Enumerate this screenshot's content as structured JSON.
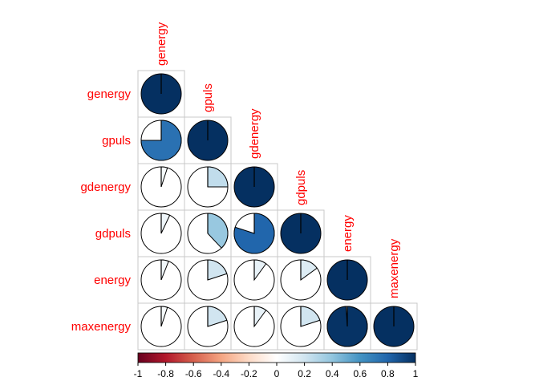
{
  "chart_data": {
    "type": "heatmap",
    "subtype": "correlation-pie",
    "layout": "lower-triangle",
    "variables": [
      "genergy",
      "gpuls",
      "gdenergy",
      "gdpuls",
      "energy",
      "maxenergy"
    ],
    "matrix": [
      [
        1.0,
        0.75,
        0.05,
        0.07,
        0.06,
        0.05
      ],
      [
        0.75,
        1.0,
        0.25,
        0.38,
        0.2,
        0.2
      ],
      [
        0.05,
        0.25,
        1.0,
        0.8,
        0.1,
        0.1
      ],
      [
        0.07,
        0.38,
        0.8,
        1.0,
        0.15,
        0.2
      ],
      [
        0.06,
        0.2,
        0.1,
        0.15,
        1.0,
        0.99
      ],
      [
        0.05,
        0.2,
        0.1,
        0.2,
        0.99,
        1.0
      ]
    ],
    "colorbar": {
      "min": -1,
      "max": 1,
      "ticks": [
        "-1",
        "-0.8",
        "-0.6",
        "-0.4",
        "-0.2",
        "0",
        "0.2",
        "0.4",
        "0.6",
        "0.8",
        "1"
      ],
      "stops": [
        "#67001F",
        "#B2182B",
        "#D6604D",
        "#F4A582",
        "#FDDBC7",
        "#FFFFFF",
        "#D1E5F0",
        "#92C5DE",
        "#4393C3",
        "#2166AC",
        "#053061"
      ]
    },
    "label_color": "#ff0000"
  }
}
